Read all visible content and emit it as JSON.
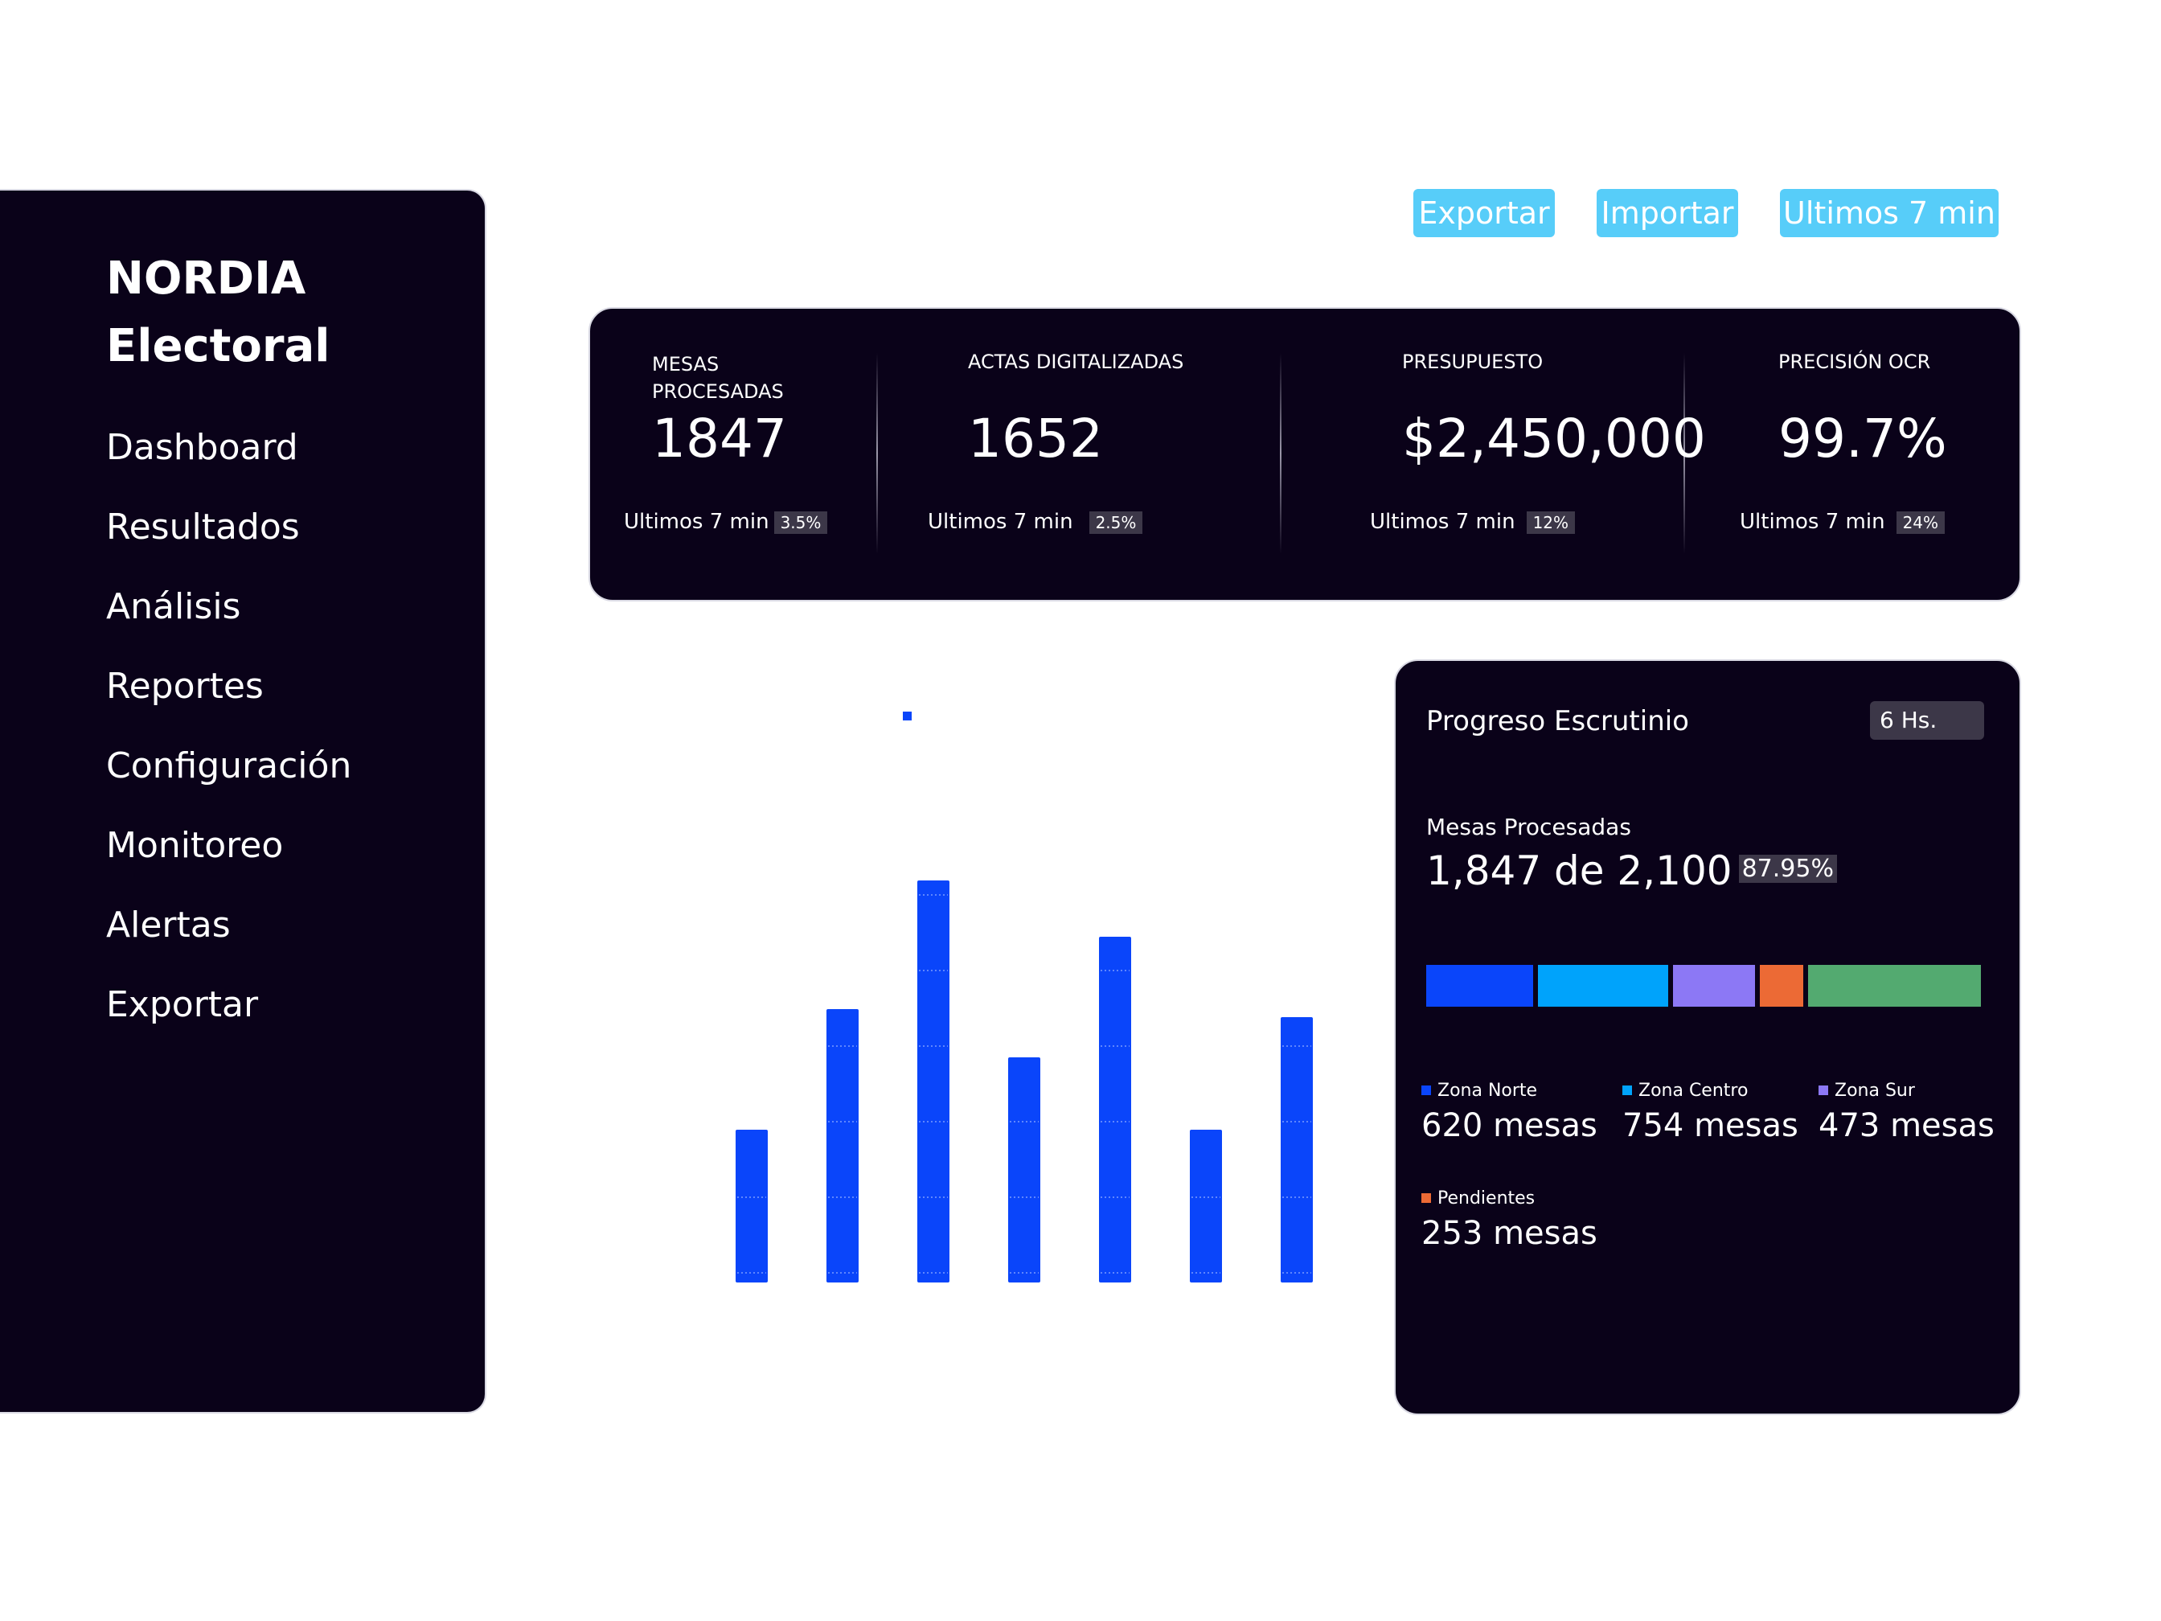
{
  "brand": {
    "line1": "NORDIA",
    "line2": "Electoral"
  },
  "sidebar": {
    "items": [
      {
        "label": "Dashboard"
      },
      {
        "label": "Resultados"
      },
      {
        "label": "Análisis"
      },
      {
        "label": "Reportes"
      },
      {
        "label": "Configuración"
      },
      {
        "label": "Monitoreo"
      },
      {
        "label": "Alertas"
      },
      {
        "label": "Exportar"
      }
    ]
  },
  "toolbar": {
    "export_label": "Exportar",
    "import_label": "Importar",
    "range_label": "Ultimos 7 min"
  },
  "kpis": [
    {
      "label": "MESAS PROCESADAS",
      "value": "1847",
      "period": "Ultimos 7 min",
      "change": "3.5%"
    },
    {
      "label": "ACTAS DIGITALIZADAS",
      "value": "1652",
      "period": "Ultimos 7 min",
      "change": "2.5%"
    },
    {
      "label": "PRESUPUESTO",
      "value": "$2,450,000",
      "period": "Ultimos 7 min",
      "change": "12%"
    },
    {
      "label": "PRECISIÓN OCR",
      "value": "99.7%",
      "period": "Ultimos 7 min",
      "change": "24%"
    }
  ],
  "chart_data": {
    "type": "bar",
    "values": [
      190,
      340,
      500,
      280,
      430,
      190,
      330
    ],
    "ylim": [
      0,
      500
    ],
    "legend": [
      {
        "name": "",
        "color": "#0a45fa"
      }
    ],
    "bar_color": "#0a45fa",
    "grid": false
  },
  "progress": {
    "title": "Progreso Escrutinio",
    "range": "6 Hs.",
    "subtitle": "Mesas Procesadas",
    "summary": "1,847 de 2,100",
    "percent": "87.95%",
    "segments": [
      {
        "name": "Zona Norte",
        "value": 620,
        "color": "#0a45fa"
      },
      {
        "name": "Zona Centro",
        "value": 754,
        "color": "#00a3fb"
      },
      {
        "name": "Zona Sur",
        "value": 473,
        "color": "#8c78f5"
      },
      {
        "name": "Pendientes",
        "value": 253,
        "color": "#ec6a35"
      },
      {
        "name": "",
        "value": 1000,
        "color": "#53aa70"
      }
    ],
    "legend": [
      {
        "label": "Zona Norte",
        "value": "620 mesas",
        "color": "#0a45fa"
      },
      {
        "label": "Zona Centro",
        "value": "754 mesas",
        "color": "#00a3fb"
      },
      {
        "label": "Zona Sur",
        "value": "473 mesas",
        "color": "#8c78f5"
      },
      {
        "label": "Pendientes",
        "value": "253 mesas",
        "color": "#ec6a35"
      }
    ]
  }
}
